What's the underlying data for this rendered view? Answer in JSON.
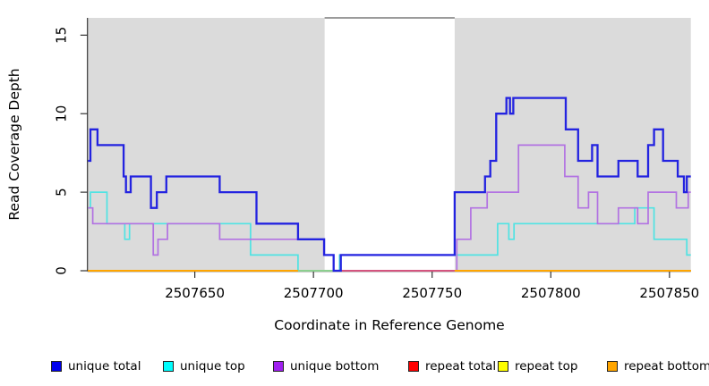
{
  "y_axis": {
    "title": "Read Coverage Depth",
    "ticks": [
      0,
      5,
      10,
      15
    ]
  },
  "x_axis": {
    "title": "Coordinate in Reference Genome",
    "ticks": [
      2507650,
      2507700,
      2507750,
      2507800,
      2507850
    ]
  },
  "chart_data": {
    "type": "line",
    "step": true,
    "xlabel": "Coordinate in Reference Genome",
    "ylabel": "Read Coverage Depth",
    "xlim": [
      2507605,
      2507859
    ],
    "ylim": [
      0,
      16.1
    ],
    "grid": false,
    "legend_position": "bottom",
    "background_color": "#ffffff",
    "highlight_color": "#dbdbdb",
    "highlight_regions": [
      {
        "x0": 2507605,
        "x1": 2507704.7
      },
      {
        "x0": 2507759.5,
        "x1": 2507859
      }
    ],
    "gap_top_line": {
      "x0": 2507704.7,
      "x1": 2507759.5,
      "color": "#7a7a7a"
    },
    "baseline_segments": [
      {
        "x0": 2507605,
        "x1": 2507693.5,
        "color": "#ffa500"
      },
      {
        "x0": 2507693.5,
        "x1": 2507710,
        "color": "#8ccf8f"
      },
      {
        "x0": 2507710,
        "x1": 2507759.5,
        "color": "#d4547f"
      },
      {
        "x0": 2507759.5,
        "x1": 2507859,
        "color": "#ffa500"
      }
    ],
    "series": [
      {
        "name": "repeat total",
        "color": "#ff0000",
        "width": 1.6,
        "points": [
          [
            2507605,
            0
          ]
        ]
      },
      {
        "name": "repeat top",
        "color": "#ffff00",
        "width": 1.6,
        "points": [
          [
            2507605,
            0
          ]
        ]
      },
      {
        "name": "repeat bottom",
        "color": "#ffa500",
        "width": 1.8,
        "points": [
          [
            2507605,
            0
          ]
        ]
      },
      {
        "name": "unique top",
        "color": "#4fe3e3",
        "width": 1.7,
        "points": [
          [
            2507605,
            4
          ],
          [
            2507606,
            5
          ],
          [
            2507613,
            3
          ],
          [
            2507620.5,
            2
          ],
          [
            2507622.5,
            3
          ],
          [
            2507673.5,
            1
          ],
          [
            2507693.5,
            0
          ],
          [
            2507711,
            1
          ],
          [
            2507777.6,
            3
          ],
          [
            2507782.3,
            2
          ],
          [
            2507784.5,
            3
          ],
          [
            2507835.4,
            4
          ],
          [
            2507843.5,
            2
          ],
          [
            2507857.3,
            1
          ]
        ]
      },
      {
        "name": "unique bottom",
        "color": "#b272e2",
        "width": 1.7,
        "points": [
          [
            2507605,
            4
          ],
          [
            2507607,
            3
          ],
          [
            2507632.5,
            1
          ],
          [
            2507634.5,
            2
          ],
          [
            2507638.5,
            3
          ],
          [
            2507660.5,
            2
          ],
          [
            2507704.3,
            1
          ],
          [
            2507708.5,
            0
          ],
          [
            2507760.4,
            2
          ],
          [
            2507766.3,
            4
          ],
          [
            2507773.2,
            5
          ],
          [
            2507786.4,
            8
          ],
          [
            2507805.9,
            6
          ],
          [
            2507811.5,
            4
          ],
          [
            2507815.9,
            5
          ],
          [
            2507819.7,
            3
          ],
          [
            2507828.5,
            4
          ],
          [
            2507836.6,
            3
          ],
          [
            2507841,
            5
          ],
          [
            2507852.9,
            4
          ],
          [
            2507857.9,
            5
          ]
        ]
      },
      {
        "name": "unique total",
        "color": "#2323e0",
        "width": 2.3,
        "points": [
          [
            2507605,
            7
          ],
          [
            2507606,
            9
          ],
          [
            2507609,
            8
          ],
          [
            2507620,
            6
          ],
          [
            2507621,
            5
          ],
          [
            2507623,
            6
          ],
          [
            2507631.5,
            4
          ],
          [
            2507634,
            5
          ],
          [
            2507638,
            6
          ],
          [
            2507660.5,
            5
          ],
          [
            2507676,
            3
          ],
          [
            2507693.5,
            2
          ],
          [
            2507704.5,
            1
          ],
          [
            2507708.5,
            0
          ],
          [
            2507711.5,
            1
          ],
          [
            2507759.5,
            5
          ],
          [
            2507772.3,
            6
          ],
          [
            2507774.5,
            7
          ],
          [
            2507777,
            10
          ],
          [
            2507781.3,
            11
          ],
          [
            2507782.8,
            10
          ],
          [
            2507784.2,
            11
          ],
          [
            2507806.3,
            9
          ],
          [
            2507811.5,
            7
          ],
          [
            2507817.4,
            8
          ],
          [
            2507819.7,
            6
          ],
          [
            2507828.5,
            7
          ],
          [
            2507836.6,
            6
          ],
          [
            2507841,
            8
          ],
          [
            2507843.5,
            9
          ],
          [
            2507847.3,
            7
          ],
          [
            2507853.5,
            6
          ],
          [
            2507856.1,
            5
          ],
          [
            2507857.3,
            6
          ]
        ]
      }
    ],
    "legend": [
      {
        "label": "unique total",
        "color": "#0000ee"
      },
      {
        "label": "unique top",
        "color": "#00ffff"
      },
      {
        "label": "unique bottom",
        "color": "#a020f0"
      },
      {
        "label": "repeat total",
        "color": "#ff0000"
      },
      {
        "label": "repeat top",
        "color": "#ffff00"
      },
      {
        "label": "repeat bottom",
        "color": "#ffa500"
      }
    ]
  }
}
